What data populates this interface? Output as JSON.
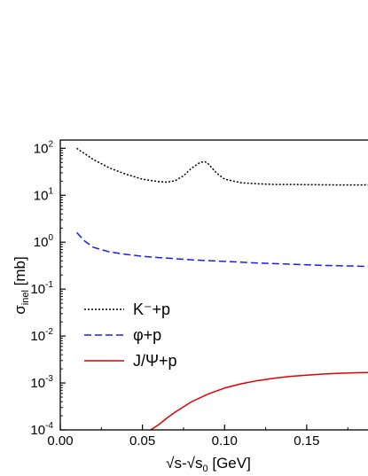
{
  "chart_data": {
    "type": "line",
    "title": "",
    "xlabel": {
      "main": "√s-√s",
      "sub": "0",
      "unit": " [GeV]"
    },
    "ylabel": {
      "main": "σ",
      "sub": "inel",
      "unit": " [mb]"
    },
    "xlim": [
      0.0,
      0.19
    ],
    "ylim": [
      0.0001,
      150
    ],
    "yscale": "log",
    "x_ticks": [
      {
        "value": 0.0,
        "label": "0.00"
      },
      {
        "value": 0.05,
        "label": "0.05"
      },
      {
        "value": 0.1,
        "label": "0.10"
      },
      {
        "value": 0.15,
        "label": "0.15"
      }
    ],
    "y_ticks": [
      {
        "value": 0.0001,
        "base": "10",
        "exp": "-4"
      },
      {
        "value": 0.001,
        "base": "10",
        "exp": "-3"
      },
      {
        "value": 0.01,
        "base": "10",
        "exp": "-2"
      },
      {
        "value": 0.1,
        "base": "10",
        "exp": "-1"
      },
      {
        "value": 1,
        "base": "10",
        "exp": "0"
      },
      {
        "value": 10,
        "base": "10",
        "exp": "1"
      },
      {
        "value": 100,
        "base": "10",
        "exp": "2"
      }
    ],
    "grid": false,
    "legend_position": "lower-left",
    "series": [
      {
        "name": "K⁻+p",
        "color": "#000000",
        "dash": "dotted",
        "x": [
          0.01,
          0.02,
          0.03,
          0.04,
          0.05,
          0.06,
          0.065,
          0.07,
          0.075,
          0.08,
          0.085,
          0.088,
          0.09,
          0.095,
          0.1,
          0.11,
          0.12,
          0.13,
          0.14,
          0.15,
          0.16,
          0.17,
          0.18,
          0.19
        ],
        "y": [
          100,
          58,
          38,
          28,
          22,
          19.5,
          19,
          20.5,
          26,
          38,
          50,
          52,
          47,
          30,
          22,
          18.5,
          17.5,
          17,
          17,
          16.8,
          16.7,
          16.6,
          16.6,
          16.7
        ]
      },
      {
        "name": "φ+p",
        "color": "#1a1aff",
        "dash": "dashed",
        "x": [
          0.01,
          0.015,
          0.02,
          0.03,
          0.04,
          0.05,
          0.06,
          0.08,
          0.1,
          0.12,
          0.14,
          0.16,
          0.18,
          0.19
        ],
        "y": [
          1.6,
          1.05,
          0.78,
          0.62,
          0.55,
          0.5,
          0.47,
          0.42,
          0.39,
          0.36,
          0.34,
          0.32,
          0.31,
          0.3
        ]
      },
      {
        "name": "J/Ψ+p",
        "color": "#e00000",
        "dash": "solid",
        "x": [
          0.055,
          0.06,
          0.065,
          0.07,
          0.075,
          0.08,
          0.09,
          0.1,
          0.11,
          0.12,
          0.13,
          0.14,
          0.15,
          0.16,
          0.17,
          0.18,
          0.19
        ],
        "y": [
          0.0001,
          0.00013,
          0.00018,
          0.00024,
          0.00031,
          0.0004,
          0.00058,
          0.00078,
          0.00096,
          0.00112,
          0.00126,
          0.00138,
          0.00147,
          0.00155,
          0.00161,
          0.00165,
          0.00168
        ]
      }
    ]
  }
}
